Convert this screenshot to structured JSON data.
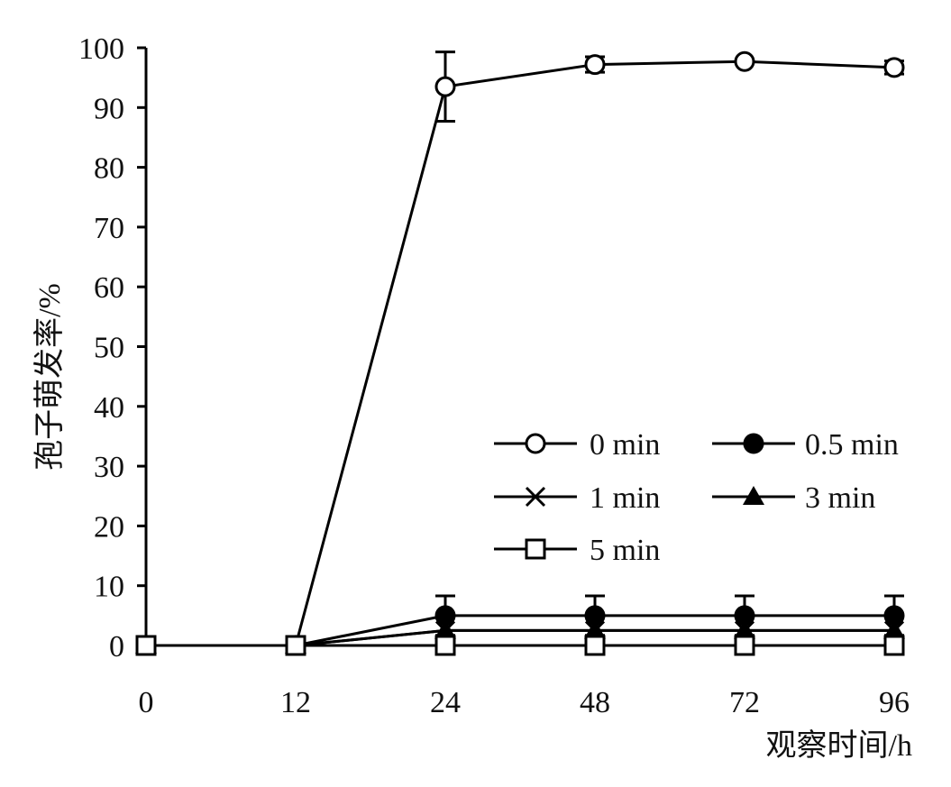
{
  "chart_data": {
    "type": "line",
    "xlabel": "观察时间/h",
    "ylabel": "孢子萌发率/%",
    "categories": [
      "0",
      "12",
      "24",
      "48",
      "72",
      "96"
    ],
    "ylim": [
      0,
      100
    ],
    "yticks": [
      0,
      10,
      20,
      30,
      40,
      50,
      60,
      70,
      80,
      90,
      100
    ],
    "grid": false,
    "legend_position": "bottom-right",
    "series": [
      {
        "name": "0 min",
        "marker": "circle-open",
        "values": [
          0,
          0,
          93.5,
          97.2,
          97.7,
          96.7
        ],
        "errors": [
          0,
          0,
          5.8,
          1.3,
          0,
          1.1
        ]
      },
      {
        "name": "0.5 min",
        "marker": "circle-filled",
        "values": [
          0,
          0,
          5,
          5,
          5,
          5
        ],
        "errors": [
          0,
          0,
          3.3,
          3.3,
          3.3,
          3.3
        ]
      },
      {
        "name": "1 min",
        "marker": "cross",
        "values": [
          0,
          0,
          2.5,
          2.5,
          2.5,
          2.5
        ],
        "errors": [
          0,
          0,
          0,
          0,
          0,
          0
        ]
      },
      {
        "name": "3 min",
        "marker": "triangle-filled",
        "values": [
          0,
          0,
          2.5,
          2.5,
          2.5,
          2.5
        ],
        "errors": [
          0,
          0,
          0,
          0,
          0,
          0
        ]
      },
      {
        "name": "5 min",
        "marker": "square-open",
        "values": [
          0,
          0,
          0,
          0,
          0,
          0
        ],
        "errors": [
          0,
          0,
          0,
          0,
          0,
          0
        ]
      }
    ]
  }
}
